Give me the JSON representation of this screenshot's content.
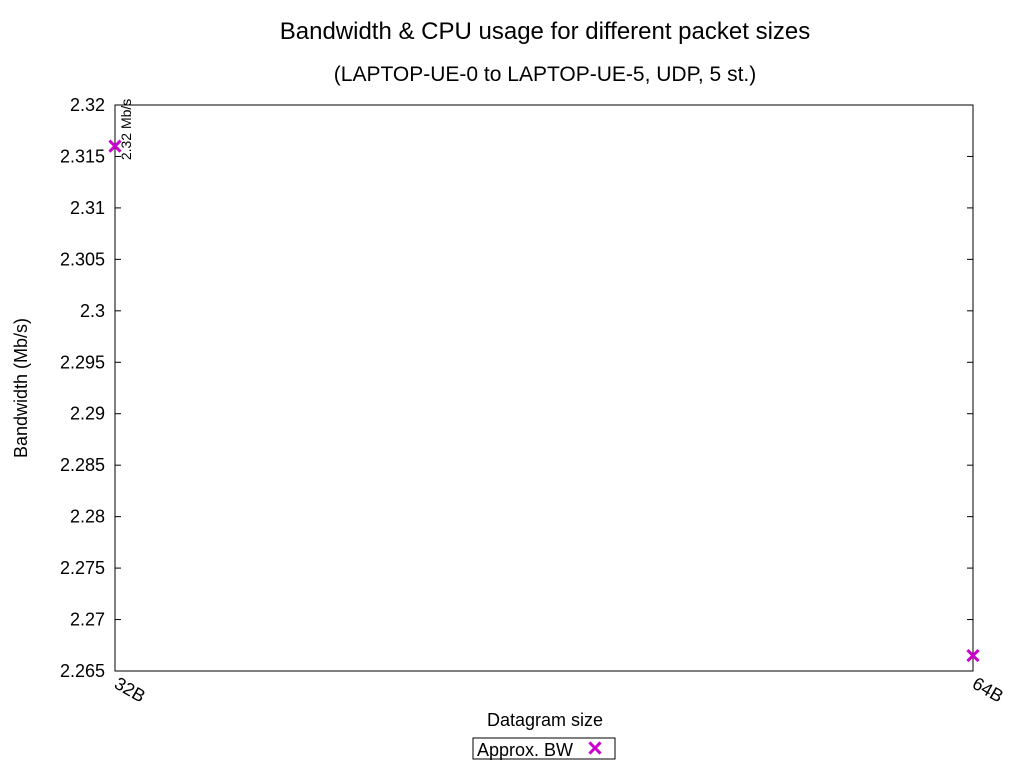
{
  "chart_data": {
    "type": "scatter",
    "title": "Bandwidth & CPU usage for different packet sizes",
    "subtitle": "(LAPTOP-UE-0 to LAPTOP-UE-5, UDP, 5 st.)",
    "xlabel": "Datagram size",
    "ylabel": "Bandwidth (Mb/s)",
    "categories": [
      "32B",
      "64B"
    ],
    "ylim": [
      2.265,
      2.32
    ],
    "yticks": [
      "2.265",
      "2.27",
      "2.275",
      "2.28",
      "2.285",
      "2.29",
      "2.295",
      "2.3",
      "2.305",
      "2.31",
      "2.315",
      "2.32"
    ],
    "grid": false,
    "legend_position": "bottom-center",
    "series": [
      {
        "name": "Approx. BW",
        "color": "#cc00cc",
        "marker": "x",
        "values": [
          2.316,
          2.2665
        ],
        "labels": [
          "2.32 Mb/s",
          ""
        ]
      }
    ]
  }
}
